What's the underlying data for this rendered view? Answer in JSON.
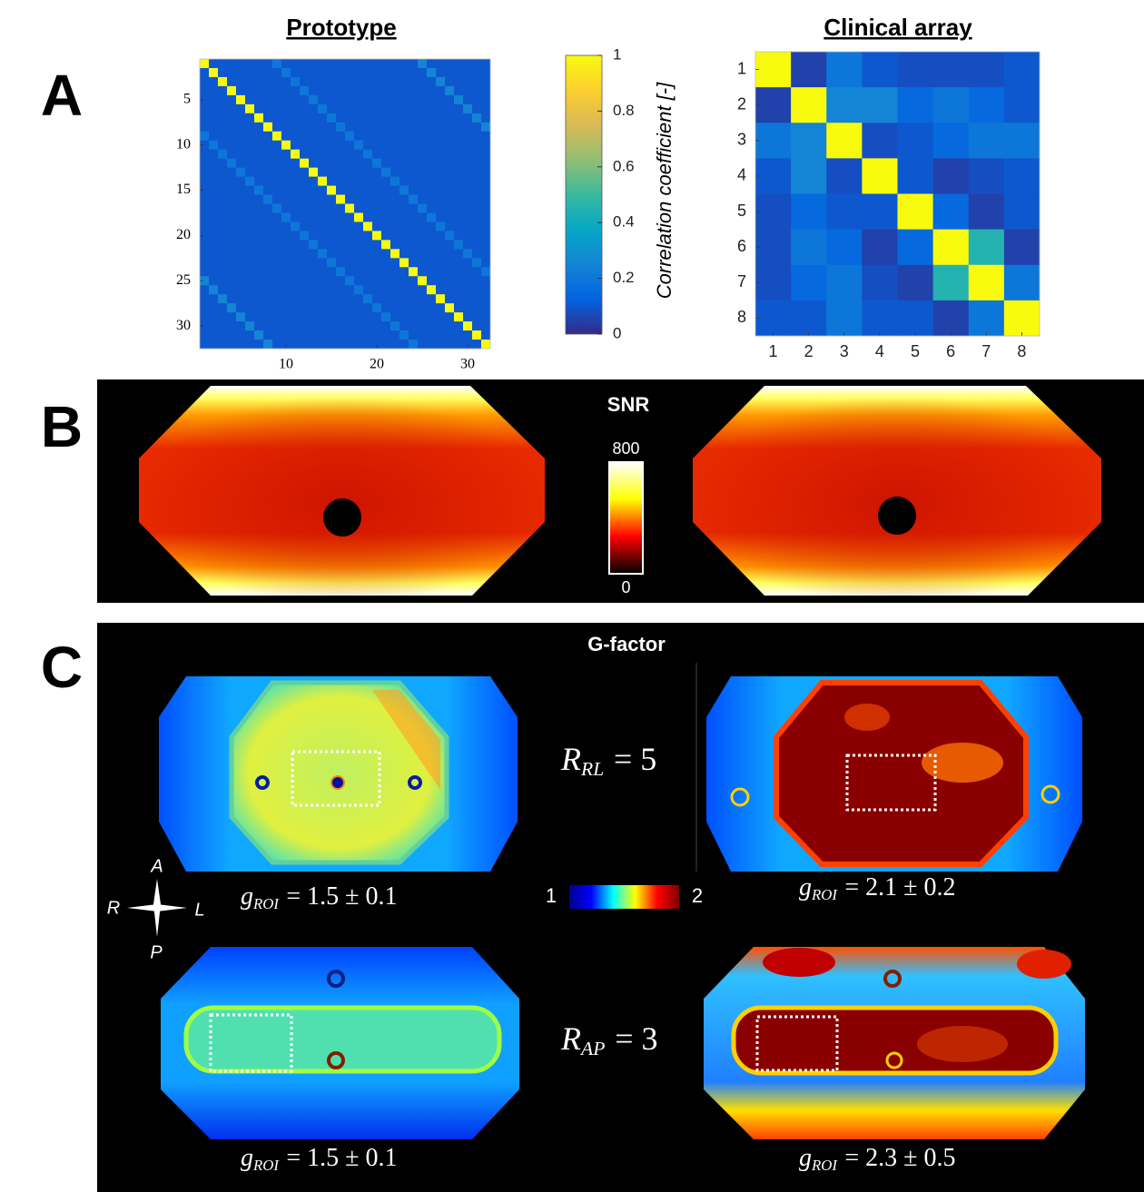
{
  "panel_labels": [
    "A",
    "B",
    "C"
  ],
  "chart_data": [
    {
      "type": "heatmap",
      "title": "Prototype",
      "xlim": [
        0.5,
        32.5
      ],
      "ylim": [
        0.5,
        32.5
      ],
      "xticks": [
        10,
        20,
        30
      ],
      "yticks": [
        5,
        10,
        15,
        20,
        25,
        30
      ],
      "values": [
        [
          1,
          0.1,
          0.1,
          0.1,
          0.1,
          0.1,
          0.1,
          0.1,
          0.2,
          0.1,
          0.1,
          0.1,
          0.1,
          0.1,
          0.1,
          0.1,
          0.1,
          0.1,
          0.1,
          0.1,
          0.1,
          0.1,
          0.1,
          0.1,
          0.25,
          0.1,
          0.1,
          0.1,
          0.1,
          0.1,
          0.1,
          0.1
        ],
        [
          0.1,
          1,
          0.1,
          0.1,
          0.1,
          0.1,
          0.1,
          0.1,
          0.1,
          0.2,
          0.1,
          0.1,
          0.1,
          0.1,
          0.1,
          0.1,
          0.1,
          0.1,
          0.1,
          0.1,
          0.1,
          0.1,
          0.1,
          0.1,
          0.1,
          0.25,
          0.1,
          0.1,
          0.1,
          0.1,
          0.1,
          0.1
        ],
        [
          0.1,
          0.1,
          1,
          0.1,
          0.1,
          0.1,
          0.1,
          0.1,
          0.1,
          0.1,
          0.2,
          0.1,
          0.1,
          0.1,
          0.1,
          0.1,
          0.1,
          0.1,
          0.1,
          0.1,
          0.1,
          0.1,
          0.1,
          0.1,
          0.1,
          0.1,
          0.25,
          0.1,
          0.1,
          0.1,
          0.1,
          0.1
        ],
        [
          0.1,
          0.1,
          0.1,
          1,
          0.1,
          0.1,
          0.1,
          0.1,
          0.1,
          0.1,
          0.1,
          0.2,
          0.1,
          0.1,
          0.1,
          0.1,
          0.1,
          0.1,
          0.1,
          0.1,
          0.1,
          0.1,
          0.1,
          0.1,
          0.1,
          0.1,
          0.1,
          0.25,
          0.1,
          0.1,
          0.1,
          0.1
        ],
        [
          0.1,
          0.1,
          0.1,
          0.1,
          1,
          0.1,
          0.1,
          0.1,
          0.1,
          0.1,
          0.1,
          0.1,
          0.2,
          0.1,
          0.1,
          0.1,
          0.1,
          0.1,
          0.1,
          0.1,
          0.1,
          0.1,
          0.1,
          0.1,
          0.1,
          0.1,
          0.1,
          0.1,
          0.25,
          0.1,
          0.1,
          0.1
        ],
        [
          0.1,
          0.1,
          0.1,
          0.1,
          0.1,
          1,
          0.1,
          0.1,
          0.1,
          0.1,
          0.1,
          0.1,
          0.1,
          0.2,
          0.1,
          0.1,
          0.1,
          0.1,
          0.1,
          0.1,
          0.1,
          0.1,
          0.1,
          0.1,
          0.1,
          0.1,
          0.1,
          0.1,
          0.1,
          0.25,
          0.1,
          0.1
        ],
        [
          0.1,
          0.1,
          0.1,
          0.1,
          0.1,
          0.1,
          1,
          0.1,
          0.1,
          0.1,
          0.1,
          0.1,
          0.1,
          0.1,
          0.2,
          0.1,
          0.1,
          0.1,
          0.1,
          0.1,
          0.1,
          0.1,
          0.1,
          0.1,
          0.1,
          0.1,
          0.1,
          0.1,
          0.1,
          0.1,
          0.25,
          0.1
        ],
        [
          0.1,
          0.1,
          0.1,
          0.1,
          0.1,
          0.1,
          0.1,
          1,
          0.1,
          0.1,
          0.1,
          0.1,
          0.1,
          0.1,
          0.1,
          0.2,
          0.1,
          0.1,
          0.1,
          0.1,
          0.1,
          0.1,
          0.1,
          0.1,
          0.1,
          0.1,
          0.1,
          0.1,
          0.1,
          0.1,
          0.1,
          0.25
        ],
        [
          0.2,
          0.1,
          0.1,
          0.1,
          0.1,
          0.1,
          0.1,
          0.1,
          1,
          0.1,
          0.1,
          0.1,
          0.1,
          0.1,
          0.1,
          0.1,
          0.2,
          0.1,
          0.1,
          0.1,
          0.1,
          0.1,
          0.1,
          0.1,
          0.1,
          0.1,
          0.1,
          0.1,
          0.1,
          0.1,
          0.1,
          0.1
        ],
        [
          0.1,
          0.2,
          0.1,
          0.1,
          0.1,
          0.1,
          0.1,
          0.1,
          0.1,
          1,
          0.1,
          0.1,
          0.1,
          0.1,
          0.1,
          0.1,
          0.1,
          0.2,
          0.1,
          0.1,
          0.1,
          0.1,
          0.1,
          0.1,
          0.1,
          0.1,
          0.1,
          0.1,
          0.1,
          0.1,
          0.1,
          0.1
        ],
        [
          0.1,
          0.1,
          0.2,
          0.1,
          0.1,
          0.1,
          0.1,
          0.1,
          0.1,
          0.1,
          1,
          0.1,
          0.1,
          0.1,
          0.1,
          0.1,
          0.1,
          0.1,
          0.2,
          0.1,
          0.1,
          0.1,
          0.1,
          0.1,
          0.1,
          0.1,
          0.1,
          0.1,
          0.1,
          0.1,
          0.1,
          0.1
        ],
        [
          0.1,
          0.1,
          0.1,
          0.2,
          0.1,
          0.1,
          0.1,
          0.1,
          0.1,
          0.1,
          0.1,
          1,
          0.1,
          0.1,
          0.1,
          0.1,
          0.1,
          0.1,
          0.1,
          0.2,
          0.1,
          0.1,
          0.1,
          0.1,
          0.1,
          0.1,
          0.1,
          0.1,
          0.1,
          0.1,
          0.1,
          0.1
        ],
        [
          0.1,
          0.1,
          0.1,
          0.1,
          0.2,
          0.1,
          0.1,
          0.1,
          0.1,
          0.1,
          0.1,
          0.1,
          1,
          0.1,
          0.1,
          0.1,
          0.1,
          0.1,
          0.1,
          0.1,
          0.2,
          0.1,
          0.1,
          0.1,
          0.1,
          0.1,
          0.1,
          0.1,
          0.1,
          0.1,
          0.1,
          0.1
        ],
        [
          0.1,
          0.1,
          0.1,
          0.1,
          0.1,
          0.2,
          0.1,
          0.1,
          0.1,
          0.1,
          0.1,
          0.1,
          0.1,
          1,
          0.1,
          0.1,
          0.1,
          0.1,
          0.1,
          0.1,
          0.1,
          0.2,
          0.1,
          0.1,
          0.1,
          0.1,
          0.1,
          0.1,
          0.1,
          0.1,
          0.1,
          0.1
        ],
        [
          0.1,
          0.1,
          0.1,
          0.1,
          0.1,
          0.1,
          0.2,
          0.1,
          0.1,
          0.1,
          0.1,
          0.1,
          0.1,
          0.1,
          1,
          0.1,
          0.1,
          0.1,
          0.1,
          0.1,
          0.1,
          0.1,
          0.2,
          0.1,
          0.1,
          0.1,
          0.1,
          0.1,
          0.1,
          0.1,
          0.1,
          0.1
        ],
        [
          0.1,
          0.1,
          0.1,
          0.1,
          0.1,
          0.1,
          0.1,
          0.2,
          0.1,
          0.1,
          0.1,
          0.1,
          0.1,
          0.1,
          0.1,
          1,
          0.1,
          0.1,
          0.1,
          0.1,
          0.1,
          0.1,
          0.1,
          0.2,
          0.1,
          0.1,
          0.1,
          0.1,
          0.1,
          0.1,
          0.1,
          0.1
        ],
        [
          0.1,
          0.1,
          0.1,
          0.1,
          0.1,
          0.1,
          0.1,
          0.1,
          0.2,
          0.1,
          0.1,
          0.1,
          0.1,
          0.1,
          0.1,
          0.1,
          1,
          0.1,
          0.1,
          0.1,
          0.1,
          0.1,
          0.1,
          0.1,
          0.2,
          0.1,
          0.1,
          0.1,
          0.1,
          0.1,
          0.1,
          0.1
        ],
        [
          0.1,
          0.1,
          0.1,
          0.1,
          0.1,
          0.1,
          0.1,
          0.1,
          0.1,
          0.2,
          0.1,
          0.1,
          0.1,
          0.1,
          0.1,
          0.1,
          0.1,
          1,
          0.1,
          0.1,
          0.1,
          0.1,
          0.1,
          0.1,
          0.1,
          0.2,
          0.1,
          0.1,
          0.1,
          0.1,
          0.1,
          0.1
        ],
        [
          0.1,
          0.1,
          0.1,
          0.1,
          0.1,
          0.1,
          0.1,
          0.1,
          0.1,
          0.1,
          0.2,
          0.1,
          0.1,
          0.1,
          0.1,
          0.1,
          0.1,
          0.1,
          1,
          0.1,
          0.1,
          0.1,
          0.1,
          0.1,
          0.1,
          0.1,
          0.2,
          0.1,
          0.1,
          0.1,
          0.1,
          0.1
        ],
        [
          0.1,
          0.1,
          0.1,
          0.1,
          0.1,
          0.1,
          0.1,
          0.1,
          0.1,
          0.1,
          0.1,
          0.2,
          0.1,
          0.1,
          0.1,
          0.1,
          0.1,
          0.1,
          0.1,
          1,
          0.1,
          0.1,
          0.1,
          0.1,
          0.1,
          0.1,
          0.1,
          0.2,
          0.1,
          0.1,
          0.1,
          0.1
        ],
        [
          0.1,
          0.1,
          0.1,
          0.1,
          0.1,
          0.1,
          0.1,
          0.1,
          0.1,
          0.1,
          0.1,
          0.1,
          0.2,
          0.1,
          0.1,
          0.1,
          0.1,
          0.1,
          0.1,
          0.1,
          1,
          0.1,
          0.1,
          0.1,
          0.1,
          0.1,
          0.1,
          0.1,
          0.2,
          0.1,
          0.1,
          0.1
        ],
        [
          0.1,
          0.1,
          0.1,
          0.1,
          0.1,
          0.1,
          0.1,
          0.1,
          0.1,
          0.1,
          0.1,
          0.1,
          0.1,
          0.2,
          0.1,
          0.1,
          0.1,
          0.1,
          0.1,
          0.1,
          0.1,
          1,
          0.1,
          0.1,
          0.1,
          0.1,
          0.1,
          0.1,
          0.1,
          0.2,
          0.1,
          0.1
        ],
        [
          0.1,
          0.1,
          0.1,
          0.1,
          0.1,
          0.1,
          0.1,
          0.1,
          0.1,
          0.1,
          0.1,
          0.1,
          0.1,
          0.1,
          0.2,
          0.1,
          0.1,
          0.1,
          0.1,
          0.1,
          0.1,
          0.1,
          1,
          0.1,
          0.1,
          0.1,
          0.1,
          0.1,
          0.1,
          0.1,
          0.2,
          0.1
        ],
        [
          0.1,
          0.1,
          0.1,
          0.1,
          0.1,
          0.1,
          0.1,
          0.1,
          0.1,
          0.1,
          0.1,
          0.1,
          0.1,
          0.1,
          0.1,
          0.2,
          0.1,
          0.1,
          0.1,
          0.1,
          0.1,
          0.1,
          0.1,
          1,
          0.1,
          0.1,
          0.1,
          0.1,
          0.1,
          0.1,
          0.1,
          0.2
        ],
        [
          0.25,
          0.1,
          0.1,
          0.1,
          0.1,
          0.1,
          0.1,
          0.1,
          0.1,
          0.1,
          0.1,
          0.1,
          0.1,
          0.1,
          0.1,
          0.1,
          0.2,
          0.1,
          0.1,
          0.1,
          0.1,
          0.1,
          0.1,
          0.1,
          1,
          0.1,
          0.1,
          0.1,
          0.1,
          0.1,
          0.1,
          0.1
        ],
        [
          0.1,
          0.25,
          0.1,
          0.1,
          0.1,
          0.1,
          0.1,
          0.1,
          0.1,
          0.1,
          0.1,
          0.1,
          0.1,
          0.1,
          0.1,
          0.1,
          0.1,
          0.2,
          0.1,
          0.1,
          0.1,
          0.1,
          0.1,
          0.1,
          0.1,
          1,
          0.1,
          0.1,
          0.1,
          0.1,
          0.1,
          0.1
        ],
        [
          0.1,
          0.1,
          0.25,
          0.1,
          0.1,
          0.1,
          0.1,
          0.1,
          0.1,
          0.1,
          0.1,
          0.1,
          0.1,
          0.1,
          0.1,
          0.1,
          0.1,
          0.1,
          0.2,
          0.1,
          0.1,
          0.1,
          0.1,
          0.1,
          0.1,
          0.1,
          1,
          0.1,
          0.1,
          0.1,
          0.1,
          0.1
        ],
        [
          0.1,
          0.1,
          0.1,
          0.25,
          0.1,
          0.1,
          0.1,
          0.1,
          0.1,
          0.1,
          0.1,
          0.1,
          0.1,
          0.1,
          0.1,
          0.1,
          0.1,
          0.1,
          0.1,
          0.2,
          0.1,
          0.1,
          0.1,
          0.1,
          0.1,
          0.1,
          0.1,
          1,
          0.1,
          0.1,
          0.1,
          0.1
        ],
        [
          0.1,
          0.1,
          0.1,
          0.1,
          0.25,
          0.1,
          0.1,
          0.1,
          0.1,
          0.1,
          0.1,
          0.1,
          0.1,
          0.1,
          0.1,
          0.1,
          0.1,
          0.1,
          0.1,
          0.1,
          0.2,
          0.1,
          0.1,
          0.1,
          0.1,
          0.1,
          0.1,
          0.1,
          1,
          0.1,
          0.1,
          0.1
        ],
        [
          0.1,
          0.1,
          0.1,
          0.1,
          0.1,
          0.25,
          0.1,
          0.1,
          0.1,
          0.1,
          0.1,
          0.1,
          0.1,
          0.1,
          0.1,
          0.1,
          0.1,
          0.1,
          0.1,
          0.1,
          0.1,
          0.2,
          0.1,
          0.1,
          0.1,
          0.1,
          0.1,
          0.1,
          0.1,
          1,
          0.1,
          0.1
        ],
        [
          0.1,
          0.1,
          0.1,
          0.1,
          0.1,
          0.1,
          0.25,
          0.1,
          0.1,
          0.1,
          0.1,
          0.1,
          0.1,
          0.1,
          0.1,
          0.1,
          0.1,
          0.1,
          0.1,
          0.1,
          0.1,
          0.1,
          0.2,
          0.1,
          0.1,
          0.1,
          0.1,
          0.1,
          0.1,
          0.1,
          1,
          0.1
        ],
        [
          0.1,
          0.1,
          0.1,
          0.1,
          0.1,
          0.1,
          0.1,
          0.25,
          0.1,
          0.1,
          0.1,
          0.1,
          0.1,
          0.1,
          0.1,
          0.1,
          0.1,
          0.1,
          0.1,
          0.1,
          0.1,
          0.1,
          0.1,
          0.2,
          0.1,
          0.1,
          0.1,
          0.1,
          0.1,
          0.1,
          0.1,
          1
        ]
      ]
    },
    {
      "type": "heatmap",
      "title": "Clinical array",
      "xlim": [
        0.5,
        8.5
      ],
      "ylim": [
        0.5,
        8.5
      ],
      "xticks": [
        1,
        2,
        3,
        4,
        5,
        6,
        7,
        8
      ],
      "yticks": [
        1,
        2,
        3,
        4,
        5,
        6,
        7,
        8
      ],
      "values": [
        [
          1,
          0.05,
          0.2,
          0.1,
          0.08,
          0.08,
          0.08,
          0.1
        ],
        [
          0.05,
          1,
          0.25,
          0.25,
          0.15,
          0.2,
          0.15,
          0.1
        ],
        [
          0.2,
          0.25,
          1,
          0.08,
          0.1,
          0.15,
          0.2,
          0.2
        ],
        [
          0.1,
          0.25,
          0.08,
          1,
          0.1,
          0.05,
          0.08,
          0.1
        ],
        [
          0.08,
          0.15,
          0.1,
          0.1,
          1,
          0.15,
          0.05,
          0.1
        ],
        [
          0.08,
          0.2,
          0.15,
          0.05,
          0.15,
          1,
          0.45,
          0.05
        ],
        [
          0.08,
          0.15,
          0.2,
          0.08,
          0.05,
          0.45,
          1,
          0.2
        ],
        [
          0.1,
          0.1,
          0.2,
          0.1,
          0.1,
          0.05,
          0.2,
          1
        ]
      ]
    }
  ],
  "colorbar_a": {
    "label": "Correlation coefficient [-]",
    "lim": [
      0,
      1
    ],
    "ticks": [
      0,
      0.2,
      0.4,
      0.6,
      0.8,
      1
    ],
    "colormap": [
      "#352a87",
      "#0363e1",
      "#1485d4",
      "#06a7c6",
      "#38b99e",
      "#92bf73",
      "#d9ba56",
      "#fcce2e",
      "#f9fb0e"
    ]
  },
  "panel_b": {
    "title": "SNR",
    "colorbar": {
      "lim": [
        0,
        800
      ],
      "ticks": [
        0,
        800
      ],
      "colormap": [
        "#000000",
        "#ff0000",
        "#ffff00",
        "#ffffff"
      ]
    }
  },
  "panel_c": {
    "title": "G-factor",
    "colorbar": {
      "lim": [
        1,
        2
      ],
      "ticks": [
        1,
        2
      ],
      "colormap": [
        "#00008f",
        "#0000ff",
        "#00ffff",
        "#ffff00",
        "#ff0000",
        "#800000"
      ]
    },
    "orientation": {
      "top": "A",
      "left": "R",
      "right": "L",
      "bottom": "P"
    },
    "acceleration": [
      {
        "symbol": "R",
        "subscript": "RL",
        "text": "= 5"
      },
      {
        "symbol": "R",
        "subscript": "AP",
        "text": "= 3"
      }
    ],
    "g_roi": [
      {
        "symbol": "g",
        "subscript": "ROI",
        "text": "= 1.5 ± 0.1"
      },
      {
        "symbol": "g",
        "subscript": "ROI",
        "text": "= 2.1 ± 0.2"
      },
      {
        "symbol": "g",
        "subscript": "ROI",
        "text": "= 1.5 ± 0.1"
      },
      {
        "symbol": "g",
        "subscript": "ROI",
        "text": "= 2.3 ± 0.5"
      }
    ]
  }
}
